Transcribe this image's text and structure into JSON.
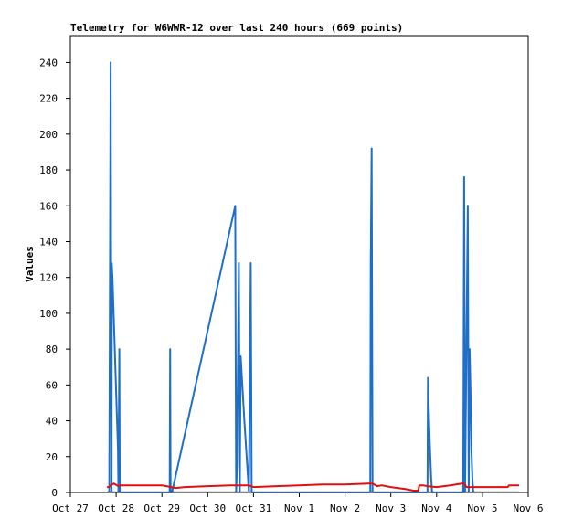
{
  "chart_data": {
    "type": "line",
    "title": "Telemetry for W6WWR-12 over last 240 hours (669 points)",
    "xlabel": "",
    "ylabel": "Values",
    "x_ticks": [
      "Oct 27",
      "Oct 28",
      "Oct 29",
      "Oct 30",
      "Oct 31",
      "Nov 1",
      "Nov 2",
      "Nov 3",
      "Nov 4",
      "Nov 5",
      "Nov 6"
    ],
    "y_ticks": [
      0,
      20,
      40,
      60,
      80,
      100,
      120,
      140,
      160,
      180,
      200,
      220,
      240
    ],
    "xlim_days": [
      0,
      10
    ],
    "ylim": [
      0,
      255
    ],
    "grid": false,
    "legend": "none",
    "series": [
      {
        "color": "#1f6fc8",
        "points": [
          [
            0.85,
            0
          ],
          [
            0.88,
            240
          ],
          [
            0.9,
            0
          ],
          [
            0.905,
            128
          ],
          [
            0.92,
            120
          ],
          [
            0.94,
            104
          ],
          [
            0.96,
            88
          ],
          [
            0.98,
            72
          ],
          [
            1.0,
            56
          ],
          [
            1.02,
            40
          ],
          [
            1.04,
            24
          ],
          [
            1.05,
            0
          ],
          [
            1.07,
            80
          ],
          [
            1.08,
            0
          ],
          [
            2.17,
            0
          ],
          [
            2.18,
            80
          ],
          [
            2.19,
            0
          ],
          [
            2.22,
            0
          ],
          [
            3.6,
            160
          ],
          [
            3.62,
            0
          ],
          [
            3.64,
            16
          ],
          [
            3.68,
            128
          ],
          [
            3.7,
            0
          ],
          [
            3.72,
            76
          ],
          [
            3.8,
            40
          ],
          [
            3.88,
            8
          ],
          [
            3.9,
            0
          ],
          [
            3.94,
            128
          ],
          [
            3.96,
            0
          ],
          [
            6.55,
            0
          ],
          [
            6.56,
            128
          ],
          [
            6.58,
            192
          ],
          [
            6.6,
            0
          ],
          [
            7.8,
            0
          ],
          [
            7.81,
            64
          ],
          [
            7.83,
            44
          ],
          [
            7.85,
            28
          ],
          [
            7.88,
            8
          ],
          [
            7.9,
            0
          ],
          [
            8.58,
            0
          ],
          [
            8.6,
            176
          ],
          [
            8.62,
            0
          ],
          [
            8.68,
            160
          ],
          [
            8.7,
            0
          ],
          [
            8.72,
            80
          ],
          [
            8.74,
            56
          ],
          [
            8.76,
            24
          ],
          [
            8.78,
            8
          ],
          [
            8.8,
            0
          ]
        ]
      },
      {
        "color": "#e01010",
        "points": [
          [
            0.8,
            3
          ],
          [
            0.85,
            3
          ],
          [
            0.88,
            4
          ],
          [
            0.95,
            5
          ],
          [
            1.05,
            3.5
          ],
          [
            1.1,
            4
          ],
          [
            1.4,
            4
          ],
          [
            2.0,
            4
          ],
          [
            2.1,
            3.5
          ],
          [
            2.2,
            3
          ],
          [
            2.3,
            2.5
          ],
          [
            2.5,
            3
          ],
          [
            3.0,
            3.5
          ],
          [
            3.5,
            4
          ],
          [
            3.9,
            4
          ],
          [
            4.0,
            3
          ],
          [
            4.5,
            3.5
          ],
          [
            5.0,
            4
          ],
          [
            5.5,
            4.5
          ],
          [
            6.0,
            4.5
          ],
          [
            6.5,
            5
          ],
          [
            6.6,
            5
          ],
          [
            6.7,
            3.5
          ],
          [
            6.8,
            4
          ],
          [
            7.0,
            3
          ],
          [
            7.3,
            2
          ],
          [
            7.5,
            1
          ],
          [
            7.6,
            1
          ],
          [
            7.62,
            4
          ],
          [
            7.7,
            4
          ],
          [
            7.8,
            3.5
          ],
          [
            8.0,
            3
          ],
          [
            8.3,
            4
          ],
          [
            8.55,
            5
          ],
          [
            8.6,
            5
          ],
          [
            8.65,
            3
          ],
          [
            8.8,
            3
          ],
          [
            9.2,
            3
          ],
          [
            9.55,
            3
          ],
          [
            9.58,
            4
          ],
          [
            9.8,
            4
          ]
        ]
      },
      {
        "color": "#000000",
        "points": [
          [
            0.8,
            0.3
          ],
          [
            9.8,
            0.3
          ]
        ]
      }
    ]
  }
}
